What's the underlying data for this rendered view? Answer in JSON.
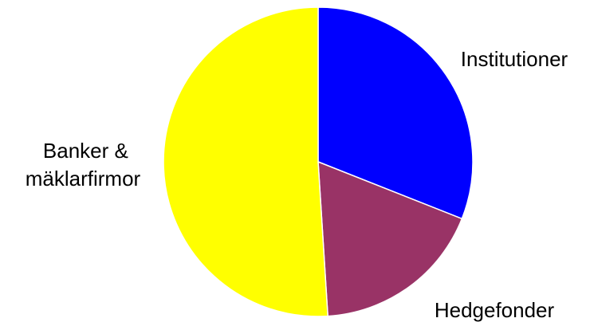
{
  "chart_data": {
    "type": "pie",
    "title": "",
    "start_angle_deg": 0,
    "direction": "clockwise",
    "slices": [
      {
        "label": "Institutioner",
        "label_lines": [
          "Institutioner"
        ],
        "value": 31,
        "color": "#0000FF"
      },
      {
        "label": "Hedgefonder",
        "label_lines": [
          "Hedgefonder"
        ],
        "value": 18,
        "color": "#993366"
      },
      {
        "label": "Banker & mäklarfirmor",
        "label_lines": [
          "Banker &",
          "mäklarfirmor"
        ],
        "value": 51,
        "color": "#FFFF00"
      }
    ],
    "legend": "none",
    "slice_border_color": "#FFFFFF"
  }
}
